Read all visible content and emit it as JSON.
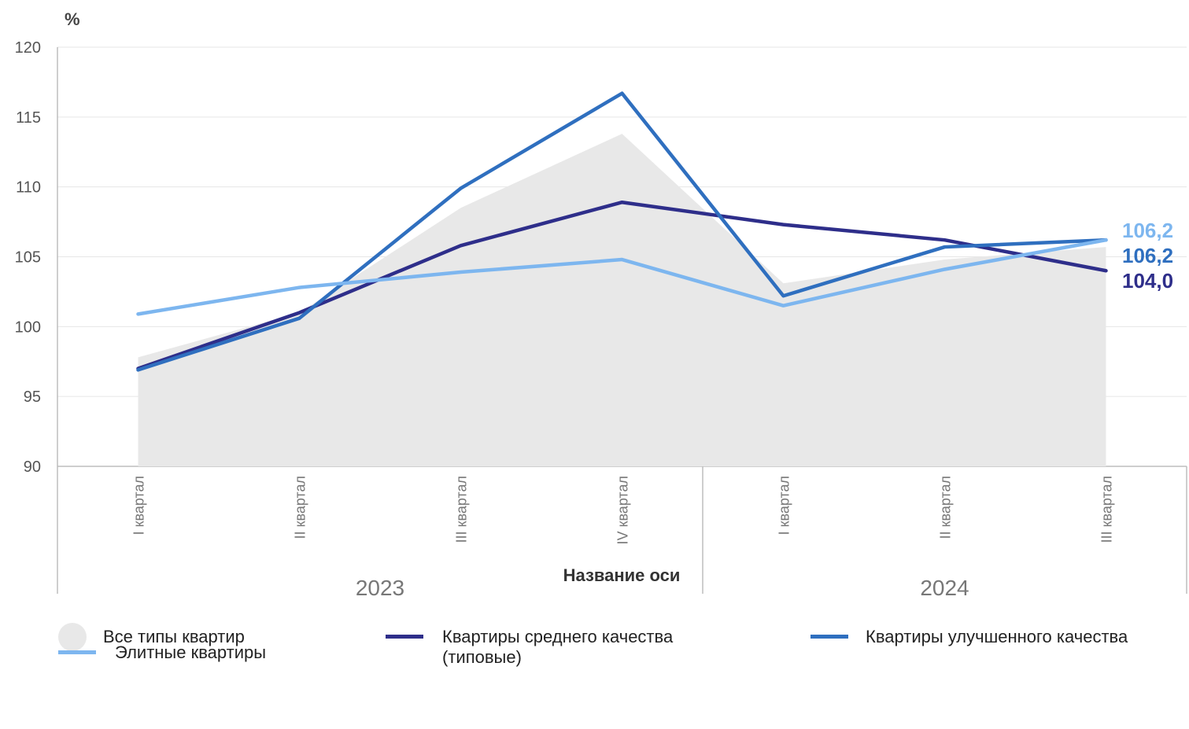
{
  "chart_data": {
    "type": "area+line",
    "ylabel": "%",
    "xlabel": "Название оси",
    "ylim": [
      90,
      120
    ],
    "yticks": [
      90,
      95,
      100,
      105,
      110,
      115,
      120
    ],
    "groups": [
      {
        "label": "2023",
        "categories": [
          "I квартал",
          "II квартал",
          "III квартал",
          "IV квартал"
        ]
      },
      {
        "label": "2024",
        "categories": [
          "I квартал",
          "II квартал",
          "III квартал"
        ]
      }
    ],
    "categories": [
      "I квартал",
      "II квартал",
      "III квартал",
      "IV квартал",
      "I квартал",
      "II квартал",
      "III квартал"
    ],
    "series": [
      {
        "name": "Все типы квартир",
        "kind": "area",
        "color": "#e8e8e8",
        "values": [
          97.8,
          101.0,
          108.5,
          113.8,
          103.1,
          104.8,
          105.7
        ]
      },
      {
        "name": "Квартиры среднего качества (типовые)",
        "kind": "line",
        "color": "#2e2e8a",
        "values": [
          97.0,
          101.0,
          105.8,
          108.9,
          107.3,
          106.2,
          104.0
        ]
      },
      {
        "name": "Квартиры улучшенного качества",
        "kind": "line",
        "color": "#2f6fbf",
        "values": [
          96.9,
          100.6,
          109.9,
          116.7,
          102.2,
          105.7,
          106.2
        ]
      },
      {
        "name": "Элитные квартиры",
        "kind": "line",
        "color": "#7db6ef",
        "values": [
          100.9,
          102.8,
          103.9,
          104.8,
          101.5,
          104.1,
          106.2
        ]
      }
    ],
    "end_labels": [
      {
        "text": "106,2",
        "color": "#7db6ef"
      },
      {
        "text": "106,2",
        "color": "#2f6fbf"
      },
      {
        "text": "104,0",
        "color": "#2e2e8a"
      }
    ],
    "grid": true,
    "legend_position": "bottom"
  }
}
